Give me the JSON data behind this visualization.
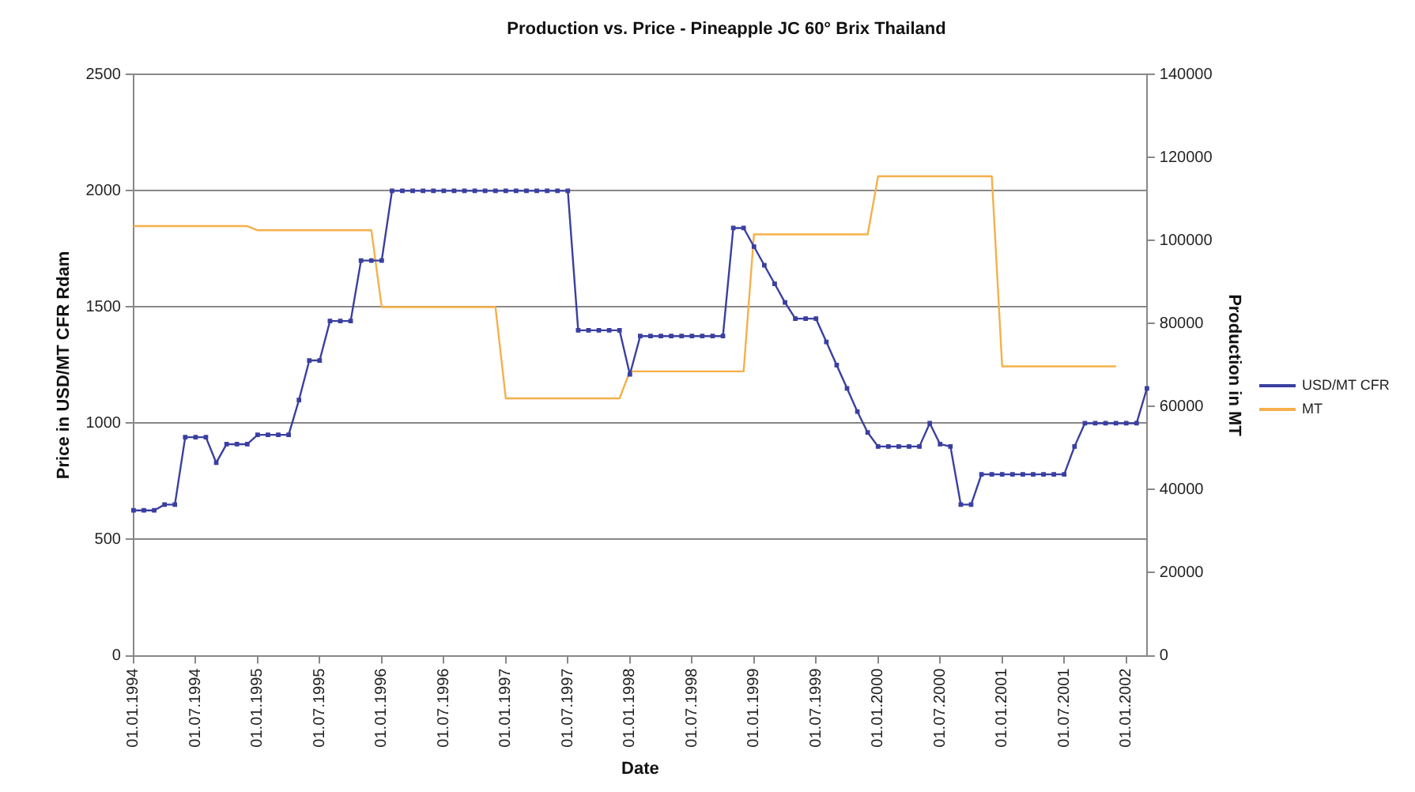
{
  "chart_data": {
    "type": "line",
    "title": "Production vs. Price - Pineapple JC 60° Brix Thailand",
    "xlabel": "Date",
    "ylabel": "Price in USD/MT CFR Rdam",
    "y2label": "Production in MT",
    "categories": [
      "01.01.1994",
      null,
      null,
      null,
      null,
      null,
      "01.07.1994",
      null,
      null,
      null,
      null,
      null,
      "01.01.1995",
      null,
      null,
      null,
      null,
      null,
      "01.07.1995",
      null,
      null,
      null,
      null,
      null,
      "01.01.1996",
      null,
      null,
      null,
      null,
      null,
      "01.07.1996",
      null,
      null,
      null,
      null,
      null,
      "01.01.1997",
      null,
      null,
      null,
      null,
      null,
      "01.07.1997",
      null,
      null,
      null,
      null,
      null,
      "01.01.1998",
      null,
      null,
      null,
      null,
      null,
      "01.07.1998",
      null,
      null,
      null,
      null,
      null,
      "01.01.1999",
      null,
      null,
      null,
      null,
      null,
      "01.07.1999",
      null,
      null,
      null,
      null,
      null,
      "01.01.2000",
      null,
      null,
      null,
      null,
      null,
      "01.07.2000",
      null,
      null,
      null,
      null,
      null,
      "01.01.2001",
      null,
      null,
      null,
      null,
      null,
      "01.07.2001",
      null,
      null,
      null,
      null,
      null,
      "01.01.2002",
      null,
      null
    ],
    "series": [
      {
        "name": "USD/MT CFR",
        "color": "#3a3fa0",
        "marker": "square",
        "values": [
          625,
          625,
          625,
          650,
          650,
          940,
          940,
          940,
          830,
          910,
          910,
          910,
          950,
          950,
          950,
          950,
          1100,
          1270,
          1270,
          1440,
          1440,
          1440,
          1700,
          1700,
          1700,
          2000,
          2000,
          2000,
          2000,
          2000,
          2000,
          2000,
          2000,
          2000,
          2000,
          2000,
          2000,
          2000,
          2000,
          2000,
          2000,
          2000,
          2000,
          1400,
          1400,
          1400,
          1400,
          1400,
          1210,
          1375,
          1375,
          1375,
          1375,
          1375,
          1375,
          1375,
          1375,
          1375,
          1840,
          1840,
          1760,
          1680,
          1600,
          1520,
          1450,
          1450,
          1450,
          1350,
          1250,
          1150,
          1050,
          960,
          900,
          900,
          900,
          900,
          900,
          1000,
          910,
          900,
          650,
          650,
          780,
          780,
          780,
          780,
          780,
          780,
          780,
          780,
          780,
          900,
          1000,
          1000,
          1000,
          1000,
          1000,
          1000,
          1150
        ]
      },
      {
        "name": "MT",
        "color": "#f5b04a",
        "marker": "none",
        "axis": "y2",
        "values": [
          103500,
          103500,
          103500,
          103500,
          103500,
          103500,
          103500,
          103500,
          103500,
          103500,
          103500,
          103500,
          102500,
          102500,
          102500,
          102500,
          102500,
          102500,
          102500,
          102500,
          102500,
          102500,
          102500,
          102500,
          84000,
          84000,
          84000,
          84000,
          84000,
          84000,
          84000,
          84000,
          84000,
          84000,
          84000,
          84000,
          62000,
          62000,
          62000,
          62000,
          62000,
          62000,
          62000,
          62000,
          62000,
          62000,
          62000,
          62000,
          68500,
          68500,
          68500,
          68500,
          68500,
          68500,
          68500,
          68500,
          68500,
          68500,
          68500,
          68500,
          101500,
          101500,
          101500,
          101500,
          101500,
          101500,
          101500,
          101500,
          101500,
          101500,
          101500,
          101500,
          115500,
          115500,
          115500,
          115500,
          115500,
          115500,
          115500,
          115500,
          115500,
          115500,
          115500,
          115500,
          69700,
          69700,
          69700,
          69700,
          69700,
          69700,
          69700,
          69700,
          69700,
          69700,
          69700,
          69700,
          null,
          null,
          null
        ]
      }
    ],
    "ylim": [
      0,
      2500
    ],
    "yticks": [
      0,
      500,
      1000,
      1500,
      2000,
      2500
    ],
    "y2lim": [
      0,
      140000
    ],
    "y2ticks": [
      0,
      20000,
      40000,
      60000,
      80000,
      100000,
      120000,
      140000
    ],
    "grid": "y",
    "legend": "right",
    "line_style": "solid"
  }
}
